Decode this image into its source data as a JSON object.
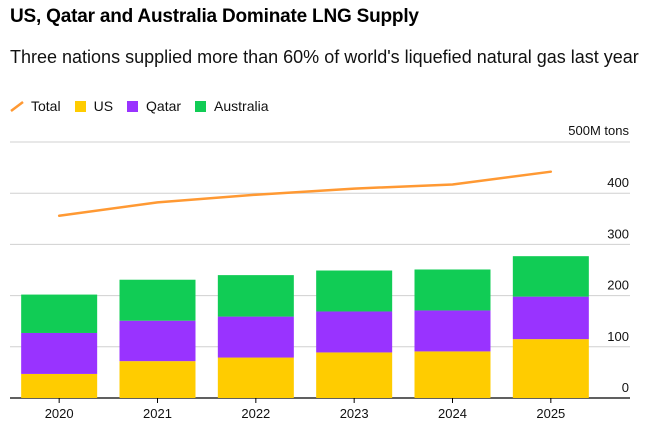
{
  "chart_data": {
    "type": "bar",
    "stacked": true,
    "title": "US, Qatar and Australia Dominate LNG Supply",
    "subtitle": "Three nations supplied more than 60% of world's liquefied natural gas last year",
    "unit_label": "500M tons",
    "categories": [
      "2020",
      "2021",
      "2022",
      "2023",
      "2024",
      "2025"
    ],
    "series": [
      {
        "name": "US",
        "color": "#ffcc00",
        "values": [
          47,
          72,
          79,
          89,
          91,
          115
        ]
      },
      {
        "name": "Qatar",
        "color": "#9933ff",
        "values": [
          80,
          79,
          80,
          80,
          80,
          83
        ]
      },
      {
        "name": "Australia",
        "color": "#11cc55",
        "values": [
          75,
          80,
          81,
          80,
          80,
          79
        ]
      }
    ],
    "line": {
      "name": "Total",
      "color": "#ff9933",
      "values": [
        356,
        382,
        397,
        409,
        417,
        442
      ]
    },
    "ylim": [
      0,
      500
    ],
    "yticks": [
      0,
      100,
      200,
      300,
      400
    ],
    "legend": [
      {
        "name": "Total",
        "kind": "line",
        "color": "#ff9933"
      },
      {
        "name": "US",
        "kind": "box",
        "color": "#ffcc00"
      },
      {
        "name": "Qatar",
        "kind": "box",
        "color": "#9933ff"
      },
      {
        "name": "Australia",
        "kind": "box",
        "color": "#11cc55"
      }
    ]
  }
}
